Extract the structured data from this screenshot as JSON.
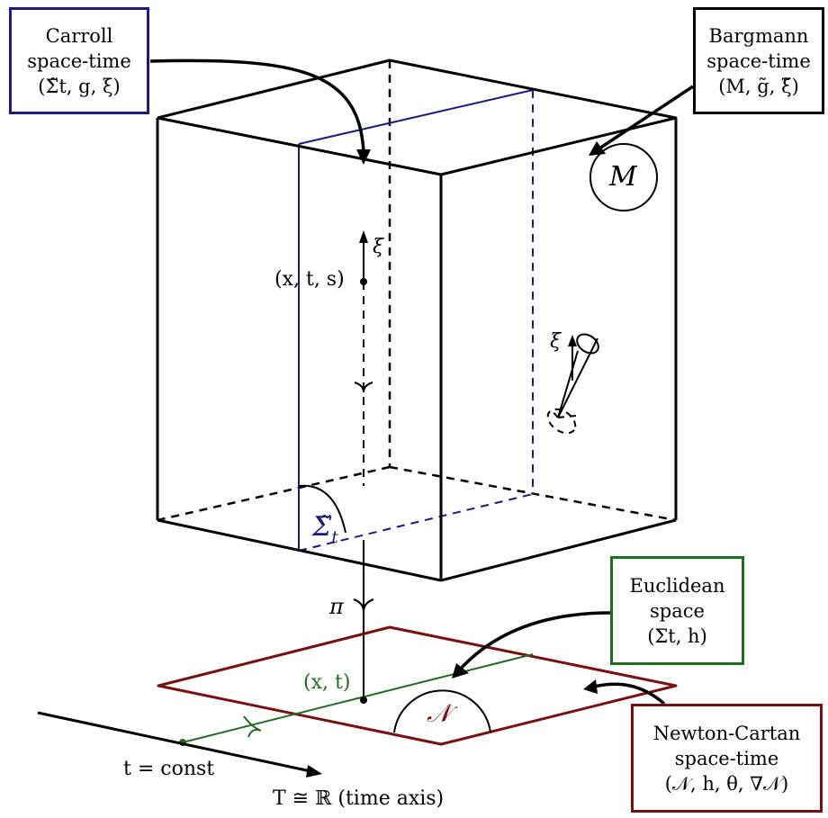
{
  "colors": {
    "carroll": "#1a1a80",
    "euclidean": "#1f6e1f",
    "newton": "#7a0f0f",
    "ink": "#000000"
  },
  "carroll_box": {
    "line1": "Carroll",
    "line2": "space-time",
    "line3": "(Σ̃t, g, ξ)"
  },
  "bargmann_box": {
    "line1": "Bargmann",
    "line2": "space-time",
    "line3": "(M, g̃, ξ̃)"
  },
  "euclidean_box": {
    "line1": "Euclidean",
    "line2": "space",
    "line3": "(Σt, h)"
  },
  "newton_box": {
    "line1": "Newton-Cartan",
    "line2": "space-time",
    "line3": "(𝒩, h, θ, ∇𝒩)"
  },
  "labels": {
    "M": "M",
    "xi_upper": "ξ",
    "point_xts": "(x, t, s)",
    "xi_cone": "ξ",
    "sigma_tilde": "Σ̃",
    "sigma_sub": "t",
    "pi": "π",
    "point_xt": "(x, t)",
    "N": "𝒩",
    "t_const": "t = const",
    "time_axis": "T ≅ ℝ (time axis)"
  }
}
